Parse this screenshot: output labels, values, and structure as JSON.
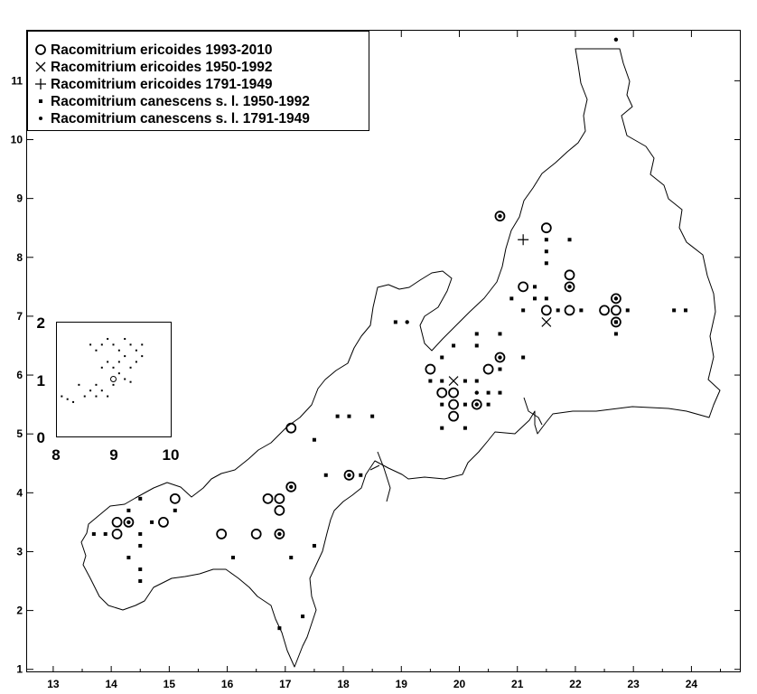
{
  "map": {
    "x_ticks": [
      "13",
      "14",
      "15",
      "16",
      "17",
      "18",
      "19",
      "20",
      "21",
      "22",
      "23",
      "24"
    ],
    "y_ticks": [
      "1",
      "2",
      "3",
      "4",
      "5",
      "6",
      "7",
      "8",
      "9",
      "10",
      "11"
    ],
    "x_range": [
      12.55,
      24.85
    ],
    "y_range": [
      0.95,
      11.85
    ]
  },
  "legend": [
    {
      "symbol": "open-circle",
      "label": "Racomitrium ericoides 1993-2010"
    },
    {
      "symbol": "cross-x",
      "label": "Racomitrium ericoides 1950-1992"
    },
    {
      "symbol": "plus",
      "label": "Racomitrium ericoides 1791-1949"
    },
    {
      "symbol": "small-square",
      "label": "Racomitrium canescens s. l. 1950-1992"
    },
    {
      "symbol": "small-dot",
      "label": "Racomitrium canescens s. l. 1791-1949"
    }
  ],
  "inset": {
    "x_ticks": [
      "8",
      "9",
      "10"
    ],
    "y_ticks": [
      "0",
      "1",
      "2"
    ]
  },
  "records": {
    "ericoides_1993_2010": [
      [
        14.1,
        3.5
      ],
      [
        14.1,
        3.3
      ],
      [
        14.3,
        3.5
      ],
      [
        14.9,
        3.5
      ],
      [
        15.1,
        3.9
      ],
      [
        15.9,
        3.3
      ],
      [
        16.5,
        3.3
      ],
      [
        16.7,
        3.9
      ],
      [
        16.9,
        3.9
      ],
      [
        16.9,
        3.7
      ],
      [
        16.9,
        3.3
      ],
      [
        17.1,
        4.1
      ],
      [
        17.1,
        5.1
      ],
      [
        18.1,
        4.3
      ],
      [
        19.5,
        6.1
      ],
      [
        19.7,
        5.7
      ],
      [
        19.9,
        5.7
      ],
      [
        19.9,
        5.5
      ],
      [
        19.9,
        5.3
      ],
      [
        20.3,
        5.5
      ],
      [
        20.5,
        6.1
      ],
      [
        20.7,
        6.3
      ],
      [
        20.7,
        8.7
      ],
      [
        21.1,
        7.5
      ],
      [
        21.5,
        8.5
      ],
      [
        21.5,
        7.1
      ],
      [
        21.9,
        7.7
      ],
      [
        21.9,
        7.5
      ],
      [
        21.9,
        7.1
      ],
      [
        22.5,
        7.1
      ],
      [
        22.7,
        7.3
      ],
      [
        22.7,
        7.1
      ],
      [
        22.7,
        6.9
      ]
    ],
    "ericoides_1950_1992": [
      [
        19.9,
        5.9
      ],
      [
        21.5,
        6.9
      ]
    ],
    "ericoides_1791_1949": [
      [
        21.1,
        8.3
      ]
    ],
    "canescens_1950_1992": [
      [
        13.7,
        3.3
      ],
      [
        13.9,
        3.3
      ],
      [
        14.3,
        3.7
      ],
      [
        14.3,
        2.9
      ],
      [
        14.5,
        3.9
      ],
      [
        14.5,
        3.3
      ],
      [
        14.5,
        3.1
      ],
      [
        14.5,
        2.7
      ],
      [
        14.5,
        2.5
      ],
      [
        14.7,
        3.5
      ],
      [
        15.1,
        3.7
      ],
      [
        16.1,
        2.9
      ],
      [
        16.9,
        1.7
      ],
      [
        17.1,
        2.9
      ],
      [
        17.3,
        1.9
      ],
      [
        17.5,
        3.1
      ],
      [
        17.5,
        4.9
      ],
      [
        17.7,
        4.3
      ],
      [
        17.9,
        5.3
      ],
      [
        18.1,
        5.3
      ],
      [
        18.3,
        4.3
      ],
      [
        18.5,
        5.3
      ],
      [
        18.9,
        6.9
      ],
      [
        19.5,
        5.9
      ],
      [
        19.7,
        6.3
      ],
      [
        19.7,
        5.9
      ],
      [
        19.7,
        5.5
      ],
      [
        19.7,
        5.1
      ],
      [
        19.9,
        6.5
      ],
      [
        20.1,
        5.9
      ],
      [
        20.1,
        5.5
      ],
      [
        20.1,
        5.1
      ],
      [
        20.3,
        6.7
      ],
      [
        20.3,
        6.5
      ],
      [
        20.3,
        5.9
      ],
      [
        20.5,
        5.7
      ],
      [
        20.5,
        5.5
      ],
      [
        20.7,
        6.7
      ],
      [
        20.7,
        6.1
      ],
      [
        20.7,
        5.7
      ],
      [
        20.9,
        7.3
      ],
      [
        21.1,
        7.1
      ],
      [
        21.1,
        6.3
      ],
      [
        21.3,
        7.5
      ],
      [
        21.3,
        7.3
      ],
      [
        21.5,
        8.3
      ],
      [
        21.5,
        8.1
      ],
      [
        21.5,
        7.9
      ],
      [
        21.5,
        7.3
      ],
      [
        21.7,
        7.1
      ],
      [
        21.9,
        8.3
      ],
      [
        22.1,
        7.1
      ],
      [
        22.7,
        6.7
      ],
      [
        22.7,
        6.9
      ],
      [
        22.9,
        7.1
      ],
      [
        23.7,
        7.1
      ],
      [
        23.9,
        7.1
      ]
    ],
    "canescens_1791_1949": [
      [
        14.3,
        3.5
      ],
      [
        16.9,
        3.3
      ],
      [
        20.3,
        5.5
      ],
      [
        20.7,
        6.3
      ],
      [
        20.7,
        8.7
      ],
      [
        21.9,
        7.5
      ],
      [
        22.7,
        7.3
      ],
      [
        22.7,
        6.9
      ],
      [
        22.7,
        11.7
      ],
      [
        18.1,
        4.3
      ],
      [
        19.1,
        6.9
      ],
      [
        20.3,
        5.7
      ],
      [
        17.1,
        4.1
      ]
    ]
  },
  "inset_points": [
    [
      8.6,
      1.6
    ],
    [
      8.7,
      1.5
    ],
    [
      8.8,
      1.6
    ],
    [
      8.9,
      1.7
    ],
    [
      9.0,
      1.6
    ],
    [
      9.1,
      1.5
    ],
    [
      9.2,
      1.7
    ],
    [
      9.3,
      1.6
    ],
    [
      9.4,
      1.5
    ],
    [
      9.2,
      1.4
    ],
    [
      9.1,
      1.3
    ],
    [
      9.0,
      1.2
    ],
    [
      8.9,
      1.3
    ],
    [
      8.8,
      1.2
    ],
    [
      9.3,
      1.2
    ],
    [
      9.4,
      1.3
    ],
    [
      9.5,
      1.4
    ],
    [
      9.5,
      1.6
    ],
    [
      8.7,
      0.9
    ],
    [
      8.6,
      0.8
    ],
    [
      8.7,
      0.7
    ],
    [
      8.8,
      0.8
    ],
    [
      8.9,
      0.7
    ],
    [
      8.5,
      0.7
    ],
    [
      8.3,
      0.6
    ],
    [
      8.1,
      0.7
    ],
    [
      8.4,
      0.9
    ],
    [
      9.0,
      0.9
    ],
    [
      9.2,
      1.0
    ],
    [
      9.1,
      1.1
    ],
    [
      9.3,
      0.95
    ],
    [
      8.2,
      0.65
    ]
  ]
}
